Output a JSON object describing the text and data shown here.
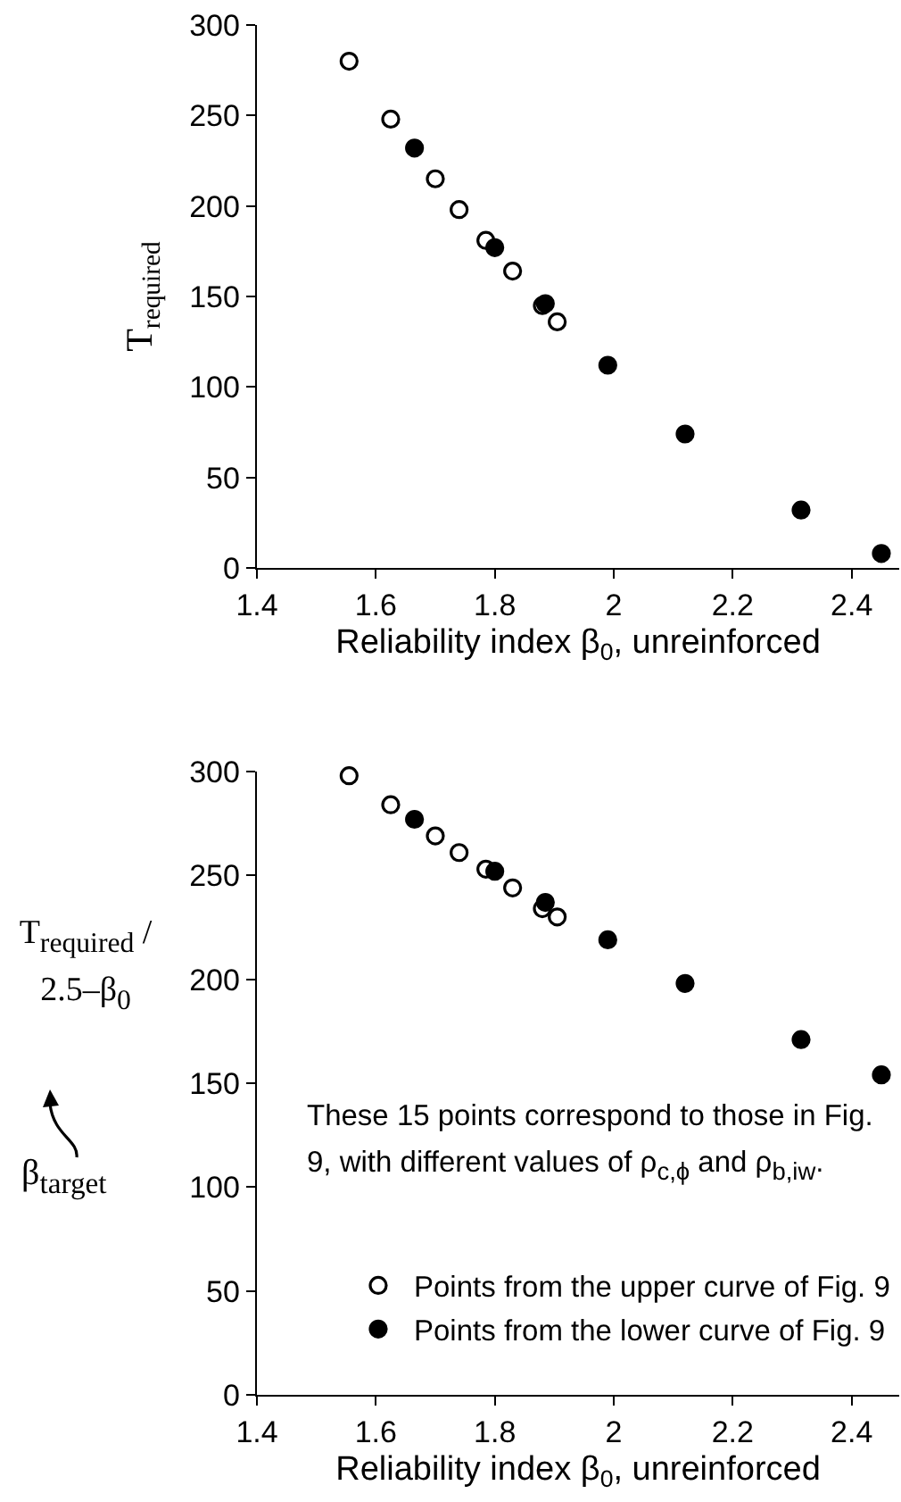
{
  "chart_data": [
    {
      "type": "scatter",
      "xlabel": "Reliability index β$_{0}$, unreinforced",
      "ylabel": "T$_{required}$",
      "xlim": [
        1.4,
        2.48
      ],
      "xticks": [
        1.4,
        1.6,
        1.8,
        2,
        2.2,
        2.4
      ],
      "ylim": [
        0,
        300
      ],
      "yticks": [
        0,
        50,
        100,
        150,
        200,
        250,
        300
      ],
      "grid": false,
      "legend": false,
      "marker": "circle",
      "series": [
        {
          "color": "#000000",
          "x": [
            1.665,
            1.8,
            1.885,
            1.99,
            2.12,
            2.315,
            2.45
          ],
          "values": [
            232,
            177,
            146,
            112,
            74,
            32,
            8
          ]
        },
        {
          "color": "#ffffff",
          "x": [
            1.555,
            1.625,
            1.7,
            1.74,
            1.785,
            1.83,
            1.88,
            1.905
          ],
          "values": [
            280,
            248,
            215,
            198,
            181,
            164,
            145,
            136
          ]
        }
      ]
    },
    {
      "type": "scatter",
      "xlabel": "Reliability index β$_{0}$, unreinforced",
      "ylabel": "T$_{required}$ / 2.5–β$_{0}$",
      "xlim": [
        1.4,
        2.48
      ],
      "xticks": [
        1.4,
        1.6,
        1.8,
        2,
        2.2,
        2.4
      ],
      "ylim": [
        0,
        300
      ],
      "yticks": [
        0,
        50,
        100,
        150,
        200,
        250,
        300
      ],
      "grid": false,
      "legend": "bottom right",
      "marker": "circle",
      "annotations": [
        "These 15 points correspond to those in Fig. 9, with different values of ρ$_{c,ϕ}$ and ρ$_{b,iw}$.",
        "β$_{target}$"
      ],
      "series": [
        {
          "name": "Points from the lower curve of Fig. 9",
          "color": "#000000",
          "x": [
            1.665,
            1.8,
            1.885,
            1.99,
            2.12,
            2.315,
            2.45
          ],
          "values": [
            277,
            252,
            237,
            219,
            198,
            171,
            154
          ]
        },
        {
          "name": "Points from the upper curve of Fig. 9",
          "color": "#ffffff",
          "x": [
            1.555,
            1.625,
            1.7,
            1.74,
            1.785,
            1.83,
            1.88,
            1.905
          ],
          "values": [
            298,
            284,
            269,
            261,
            253,
            244,
            234,
            230
          ]
        }
      ]
    }
  ]
}
